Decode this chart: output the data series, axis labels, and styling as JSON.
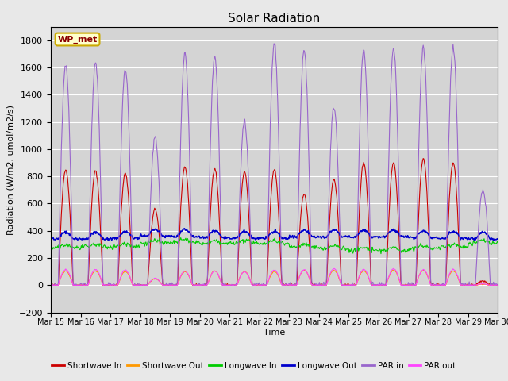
{
  "title": "Solar Radiation",
  "ylabel": "Radiation (W/m2, umol/m2/s)",
  "xlabel": "Time",
  "ylim": [
    -200,
    1900
  ],
  "yticks": [
    -200,
    0,
    200,
    400,
    600,
    800,
    1000,
    1200,
    1400,
    1600,
    1800
  ],
  "date_labels": [
    "Mar 15",
    "Mar 16",
    "Mar 17",
    "Mar 18",
    "Mar 19",
    "Mar 20",
    "Mar 21",
    "Mar 22",
    "Mar 23",
    "Mar 24",
    "Mar 25",
    "Mar 26",
    "Mar 27",
    "Mar 28",
    "Mar 29",
    "Mar 30"
  ],
  "fig_bg_color": "#e8e8e8",
  "axes_bg_color": "#d4d4d4",
  "grid_color": "#ffffff",
  "legend_label": "WP_met",
  "series_colors": {
    "shortwave_in": "#cc0000",
    "shortwave_out": "#ff9900",
    "longwave_in": "#00cc00",
    "longwave_out": "#0000cc",
    "par_in": "#9966cc",
    "par_out": "#ff44ff"
  },
  "series_labels": [
    "Shortwave In",
    "Shortwave Out",
    "Longwave In",
    "Longwave Out",
    "PAR in",
    "PAR out"
  ],
  "n_days": 15,
  "pts_per_day": 48,
  "sw_in_peaks": [
    850,
    840,
    820,
    560,
    870,
    860,
    830,
    850,
    670,
    780,
    900,
    900,
    930,
    900,
    30
  ],
  "sw_out_peaks": [
    105,
    105,
    100,
    45,
    100,
    105,
    100,
    100,
    110,
    110,
    105,
    110,
    110,
    105,
    5
  ],
  "lw_in_base": [
    275,
    280,
    285,
    310,
    315,
    305,
    310,
    310,
    280,
    270,
    255,
    255,
    270,
    280,
    310
  ],
  "lw_out_base": [
    340,
    340,
    345,
    360,
    360,
    350,
    345,
    345,
    355,
    355,
    355,
    355,
    350,
    345,
    340
  ],
  "par_in_peaks": [
    1620,
    1630,
    1590,
    1090,
    1700,
    1680,
    1200,
    1770,
    1730,
    1310,
    1720,
    1730,
    1750,
    1750,
    700
  ],
  "par_out_peaks": [
    115,
    115,
    110,
    50,
    105,
    105,
    100,
    110,
    115,
    120,
    115,
    120,
    115,
    115,
    10
  ]
}
